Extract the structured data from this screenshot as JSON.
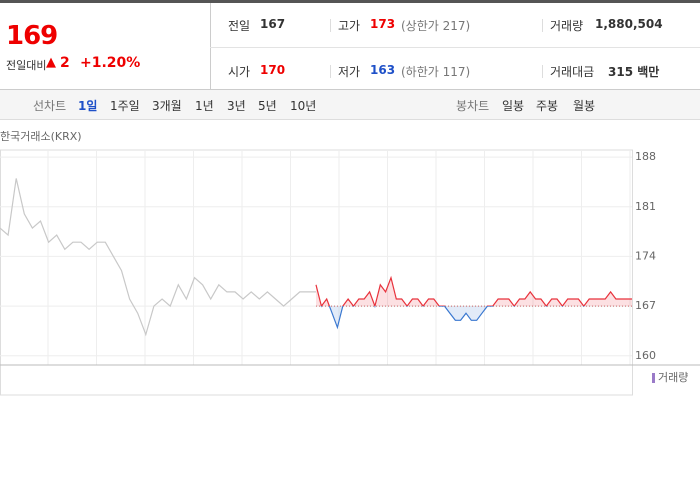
{
  "header": {
    "price": "169",
    "change_label": "전일대비",
    "change": "2",
    "change_pct": "+1.20%",
    "stats": [
      {
        "label": "전일",
        "value": "167"
      },
      {
        "label": "고가",
        "value": "173",
        "extra": "(상한가 217)"
      },
      {
        "label": "거래량",
        "value": "1,880,504"
      },
      {
        "label": "시가",
        "value": "170"
      },
      {
        "label": "저가",
        "value": "163",
        "extra": "(하한가 117)"
      },
      {
        "label": "거래대금",
        "value": "315 백만"
      }
    ]
  },
  "tabs": {
    "line_label": "선차트",
    "line": [
      "1일",
      "1주일",
      "3개월",
      "1년",
      "3년",
      "5년",
      "10년"
    ],
    "candle_label": "봉차트",
    "candle": [
      "일봉",
      "주봉",
      "월봉"
    ]
  },
  "chart_data": {
    "type": "line",
    "source_label": "한국거래소(KRX)",
    "volume_label": "거래량",
    "ylim": [
      158.7,
      189
    ],
    "yticks": [
      188,
      181,
      174,
      167,
      160
    ],
    "baseline": 167,
    "previous": {
      "color": "#c8c8c8",
      "values": [
        178,
        177,
        185,
        180,
        178,
        179,
        176,
        177,
        175,
        176,
        176,
        175,
        176,
        176,
        174,
        172,
        168,
        166,
        163,
        167,
        168,
        167,
        170,
        168,
        171,
        170,
        168,
        170,
        169,
        169,
        168,
        169,
        168,
        169,
        168,
        167,
        168,
        169,
        169,
        169
      ]
    },
    "today": {
      "color_up": "#e8323c",
      "color_down": "#3a78d0",
      "values": [
        170,
        167,
        168,
        166,
        164,
        167,
        168,
        167,
        168,
        168,
        169,
        167,
        170,
        169,
        171,
        168,
        168,
        167,
        168,
        168,
        167,
        168,
        168,
        167,
        167,
        166,
        165,
        165,
        166,
        165,
        165,
        166,
        167,
        167,
        168,
        168,
        168,
        167,
        168,
        168,
        169,
        168,
        168,
        167,
        168,
        168,
        167,
        168,
        168,
        168,
        167,
        168,
        168,
        168,
        168,
        169,
        168,
        168,
        168,
        168
      ]
    }
  }
}
